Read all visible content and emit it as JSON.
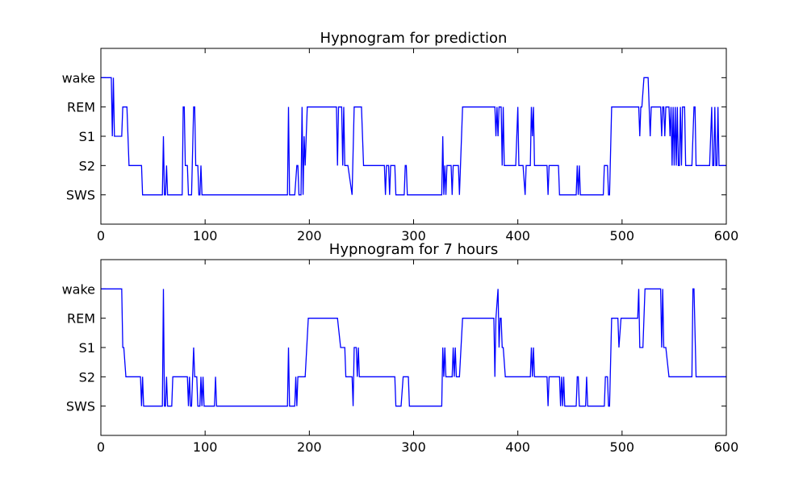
{
  "chart_data": [
    {
      "type": "line",
      "title": "Hypnogram for prediction",
      "color": "#0000ff",
      "xlim": [
        0,
        600
      ],
      "xticks": [
        0,
        100,
        200,
        300,
        400,
        500,
        600
      ],
      "ylim": [
        -1,
        5
      ],
      "yticks": [
        {
          "value": 0,
          "label": "SWS"
        },
        {
          "value": 1,
          "label": "S2"
        },
        {
          "value": 2,
          "label": "S1"
        },
        {
          "value": 3,
          "label": "REM"
        },
        {
          "value": 4,
          "label": "wake"
        }
      ],
      "x": [
        0,
        10,
        11,
        12,
        13,
        20,
        21,
        25,
        27,
        39,
        40,
        59,
        60,
        61,
        62,
        63,
        64,
        78,
        79,
        80,
        81,
        83,
        84,
        87,
        89,
        90,
        91,
        93,
        94,
        95,
        96,
        97,
        179,
        180,
        181,
        186,
        188,
        189,
        190,
        192,
        193,
        194,
        195,
        196,
        198,
        226,
        227,
        228,
        231,
        232,
        233,
        234,
        237,
        241,
        243,
        250,
        252,
        272,
        273,
        274,
        276,
        277,
        278,
        282,
        283,
        291,
        292,
        293,
        294,
        327,
        328,
        329,
        330,
        331,
        332,
        336,
        337,
        338,
        343,
        344,
        345,
        347,
        378,
        379,
        380,
        381,
        382,
        384,
        385,
        386,
        387,
        398,
        400,
        401,
        405,
        407,
        408,
        412,
        413,
        414,
        415,
        416,
        428,
        429,
        430,
        439,
        440,
        456,
        457,
        458,
        459,
        460,
        482,
        483,
        486,
        487,
        488,
        490,
        516,
        517,
        518,
        519,
        521,
        525,
        526,
        527,
        528,
        537,
        538,
        539,
        540,
        541,
        542,
        545,
        546,
        547,
        548,
        549,
        550,
        551,
        552,
        553,
        554,
        555,
        556,
        557,
        558,
        560,
        561,
        567,
        568,
        569,
        570,
        571,
        584,
        586,
        587,
        588,
        589,
        590,
        591,
        592,
        593,
        600
      ],
      "values": [
        4,
        4,
        2,
        4,
        2,
        2,
        3,
        3,
        1,
        1,
        0,
        0,
        2,
        0,
        0,
        1,
        0,
        0,
        3,
        3,
        1,
        1,
        0,
        0,
        3,
        3,
        1,
        1,
        0,
        0,
        1,
        0,
        0,
        3,
        0,
        0,
        1,
        1,
        0,
        0,
        3,
        0,
        2,
        1,
        3,
        3,
        1,
        3,
        3,
        1,
        3,
        1,
        1,
        0,
        3,
        3,
        1,
        1,
        0,
        1,
        1,
        0,
        1,
        1,
        0,
        0,
        1,
        1,
        0,
        0,
        2,
        0,
        1,
        0,
        1,
        1,
        0,
        1,
        1,
        0,
        1,
        3,
        3,
        2,
        3,
        2,
        3,
        3,
        1,
        3,
        1,
        1,
        3,
        1,
        1,
        0,
        1,
        1,
        3,
        2,
        3,
        1,
        1,
        0,
        1,
        1,
        0,
        0,
        1,
        0,
        1,
        0,
        0,
        1,
        1,
        0,
        0,
        3,
        3,
        2,
        3,
        3,
        4,
        4,
        3,
        2,
        3,
        3,
        2,
        3,
        3,
        2,
        3,
        3,
        2,
        3,
        1,
        3,
        1,
        3,
        1,
        3,
        1,
        1,
        3,
        1,
        3,
        3,
        1,
        1,
        2,
        3,
        3,
        1,
        1,
        3,
        1,
        1,
        3,
        1,
        1,
        3,
        1,
        1
      ]
    },
    {
      "type": "line",
      "title": "Hypnogram for 7 hours",
      "color": "#0000ff",
      "xlim": [
        0,
        600
      ],
      "xticks": [
        0,
        100,
        200,
        300,
        400,
        500,
        600
      ],
      "ylim": [
        -1,
        5
      ],
      "yticks": [
        {
          "value": 0,
          "label": "SWS"
        },
        {
          "value": 1,
          "label": "S2"
        },
        {
          "value": 2,
          "label": "S1"
        },
        {
          "value": 3,
          "label": "REM"
        },
        {
          "value": 4,
          "label": "wake"
        }
      ],
      "x": [
        0,
        20,
        21,
        22,
        24,
        38,
        39,
        40,
        41,
        59,
        60,
        61,
        62,
        63,
        64,
        68,
        69,
        83,
        84,
        85,
        86,
        87,
        89,
        90,
        92,
        93,
        95,
        96,
        97,
        98,
        99,
        109,
        110,
        111,
        179,
        180,
        181,
        186,
        187,
        188,
        189,
        196,
        199,
        227,
        230,
        234,
        235,
        241,
        242,
        243,
        245,
        246,
        247,
        248,
        282,
        283,
        288,
        290,
        295,
        296,
        327,
        328,
        329,
        330,
        331,
        337,
        338,
        339,
        340,
        341,
        344,
        347,
        377,
        378,
        379,
        381,
        382,
        383,
        384,
        385,
        386,
        388,
        412,
        413,
        414,
        415,
        416,
        428,
        429,
        430,
        440,
        441,
        442,
        443,
        444,
        445,
        456,
        457,
        458,
        459,
        465,
        466,
        467,
        483,
        484,
        486,
        487,
        488,
        490,
        496,
        497,
        499,
        515,
        516,
        517,
        520,
        522,
        537,
        538,
        539,
        540,
        542,
        545,
        567,
        568,
        569,
        571,
        600
      ],
      "values": [
        4,
        4,
        2,
        2,
        1,
        1,
        0,
        1,
        0,
        0,
        4,
        0,
        0,
        1,
        0,
        0,
        1,
        1,
        0,
        1,
        0,
        0,
        2,
        1,
        1,
        0,
        0,
        1,
        0,
        1,
        0,
        0,
        1,
        0,
        0,
        2,
        0,
        0,
        1,
        0,
        1,
        1,
        3,
        3,
        2,
        2,
        1,
        1,
        0,
        2,
        2,
        1,
        2,
        1,
        1,
        0,
        0,
        1,
        1,
        0,
        0,
        2,
        1,
        2,
        1,
        1,
        2,
        1,
        2,
        1,
        1,
        3,
        3,
        1,
        3,
        4,
        2,
        3,
        3,
        2,
        2,
        1,
        1,
        2,
        1,
        2,
        1,
        1,
        0,
        1,
        1,
        0,
        1,
        0,
        1,
        0,
        0,
        1,
        1,
        0,
        0,
        1,
        0,
        0,
        1,
        1,
        0,
        0,
        3,
        3,
        2,
        3,
        3,
        4,
        2,
        2,
        4,
        4,
        2,
        4,
        2,
        2,
        1,
        1,
        4,
        4,
        1,
        1
      ]
    }
  ]
}
